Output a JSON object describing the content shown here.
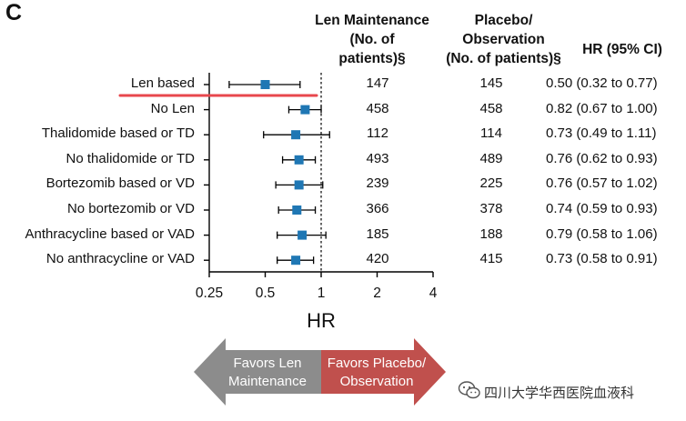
{
  "panel_label": "C",
  "headers": {
    "len_lines": [
      "Len Maintenance",
      "(No. of",
      "patients)§"
    ],
    "placebo_lines": [
      "Placebo/",
      "Observation",
      "(No. of patients)§"
    ],
    "hr_ci": "HR (95% CI)"
  },
  "chart_data": {
    "type": "forest",
    "x_scale": "log2",
    "xlim": [
      0.25,
      4
    ],
    "xticks": [
      "0.25",
      "0.5",
      "1",
      "2",
      "4"
    ],
    "xlabel": "HR",
    "reference_line": 1,
    "rows": [
      {
        "label": "Len based",
        "len_n": "147",
        "placebo_n": "145",
        "hr": 0.5,
        "lo": 0.32,
        "hi": 0.77,
        "hr_text": "0.50 (0.32 to 0.77)",
        "highlight": true
      },
      {
        "label": "No Len",
        "len_n": "458",
        "placebo_n": "458",
        "hr": 0.82,
        "lo": 0.67,
        "hi": 1.0,
        "hr_text": "0.82 (0.67 to 1.00)"
      },
      {
        "label": "Thalidomide based or TD",
        "len_n": "112",
        "placebo_n": "114",
        "hr": 0.73,
        "lo": 0.49,
        "hi": 1.11,
        "hr_text": "0.73 (0.49 to 1.11)"
      },
      {
        "label": "No thalidomide or TD",
        "len_n": "493",
        "placebo_n": "489",
        "hr": 0.76,
        "lo": 0.62,
        "hi": 0.93,
        "hr_text": "0.76 (0.62 to 0.93)"
      },
      {
        "label": "Bortezomib based or VD",
        "len_n": "239",
        "placebo_n": "225",
        "hr": 0.76,
        "lo": 0.57,
        "hi": 1.02,
        "hr_text": "0.76 (0.57 to 1.02)"
      },
      {
        "label": "No bortezomib or VD",
        "len_n": "366",
        "placebo_n": "378",
        "hr": 0.74,
        "lo": 0.59,
        "hi": 0.93,
        "hr_text": "0.74 (0.59 to 0.93)"
      },
      {
        "label": "Anthracycline based or VAD",
        "len_n": "185",
        "placebo_n": "188",
        "hr": 0.79,
        "lo": 0.58,
        "hi": 1.06,
        "hr_text": "0.79 (0.58 to 1.06)"
      },
      {
        "label": "No anthracycline or VAD",
        "len_n": "420",
        "placebo_n": "415",
        "hr": 0.73,
        "lo": 0.58,
        "hi": 0.91,
        "hr_text": "0.73 (0.58 to 0.91)"
      }
    ],
    "favors_left_lines": [
      "Favors Len",
      "Maintenance"
    ],
    "favors_right_lines": [
      "Favors Placebo/",
      "Observation"
    ]
  },
  "colors": {
    "marker": "#1f77b4",
    "highlight_line": "#e8474d",
    "arrow_left": "#8c8c8c",
    "arrow_right": "#c0504d"
  },
  "watermark": "四川大学华西医院血液科",
  "watermark_icon": "wechat-icon"
}
